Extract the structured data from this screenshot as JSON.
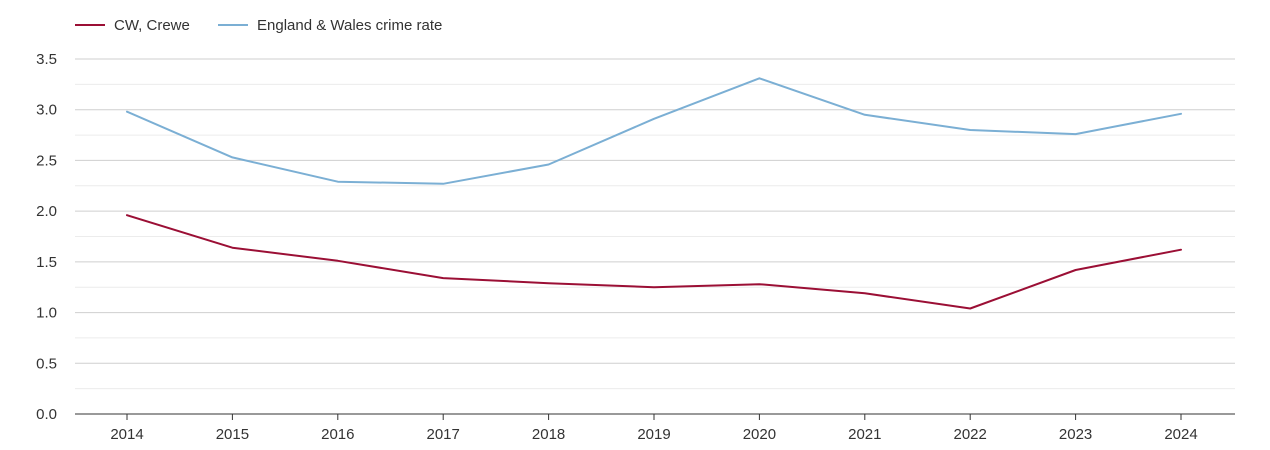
{
  "colors": {
    "background": "#ffffff",
    "grid_major": "#cfcfcf",
    "grid_minor": "#ececec",
    "axis": "#333333",
    "text": "#333333"
  },
  "chart_data": {
    "type": "line",
    "title": "",
    "xlabel": "",
    "ylabel": "",
    "x": [
      "2014",
      "2015",
      "2016",
      "2017",
      "2018",
      "2019",
      "2020",
      "2021",
      "2022",
      "2023",
      "2024"
    ],
    "ylim": [
      0,
      3.5
    ],
    "yticks": [
      "0.0",
      "0.5",
      "1.0",
      "1.5",
      "2.0",
      "2.5",
      "3.0",
      "3.5"
    ],
    "ytick_values": [
      0,
      0.5,
      1.0,
      1.5,
      2.0,
      2.5,
      3.0,
      3.5
    ],
    "grid": true,
    "legend_position": "top-left",
    "series": [
      {
        "name": "CW, Crewe",
        "color": "#9b0f35",
        "values": [
          1.96,
          1.64,
          1.51,
          1.34,
          1.29,
          1.25,
          1.28,
          1.19,
          1.04,
          1.42,
          1.62
        ]
      },
      {
        "name": "England & Wales crime rate",
        "color": "#7bafd4",
        "values": [
          2.98,
          2.53,
          2.29,
          2.27,
          2.46,
          2.91,
          3.31,
          2.95,
          2.8,
          2.76,
          2.96
        ]
      }
    ]
  }
}
